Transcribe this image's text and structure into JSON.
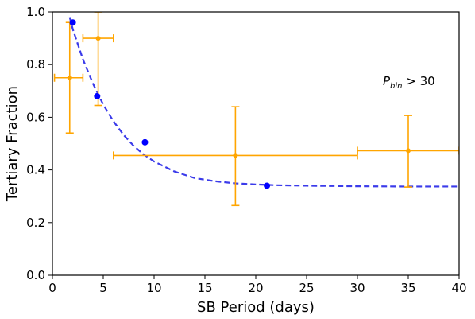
{
  "chart_data": {
    "type": "scatter",
    "xlabel": "SB Period (days)",
    "ylabel": "Tertiary Fraction",
    "xlim": [
      0,
      40
    ],
    "ylim": [
      0.0,
      1.0
    ],
    "x_ticks": [
      0,
      5,
      10,
      15,
      20,
      25,
      30,
      35,
      40
    ],
    "x_tick_labels": [
      "0",
      "5",
      "10",
      "15",
      "20",
      "25",
      "30",
      "35",
      "40"
    ],
    "y_ticks": [
      0.0,
      0.2,
      0.4,
      0.6,
      0.8,
      1.0
    ],
    "y_tick_labels": [
      "0.0",
      "0.2",
      "0.4",
      "0.6",
      "0.8",
      "1.0"
    ],
    "grid": false,
    "annotation": {
      "symbol": "P",
      "subscript": "bin",
      "relation": " > 30"
    },
    "series": [
      {
        "style": "orange points with x and y error bars",
        "color": "#ffa500",
        "points": [
          {
            "x": 1.7,
            "y": 0.75,
            "xerr": [
              0.2,
              3.0
            ],
            "yerr": [
              0.54,
              0.96
            ]
          },
          {
            "x": 4.5,
            "y": 0.9,
            "xerr": [
              3.0,
              6.0
            ],
            "yerr": [
              0.645,
              1.0
            ]
          },
          {
            "x": 18.0,
            "y": 0.455,
            "xerr": [
              6.0,
              30.0
            ],
            "yerr": [
              0.265,
              0.64
            ]
          },
          {
            "x": 35.0,
            "y": 0.473,
            "xerr": [
              30.0,
              40.0
            ],
            "yerr": [
              0.335,
              0.607
            ]
          }
        ]
      },
      {
        "style": "blue filled points",
        "color": "#0000ff",
        "points": [
          {
            "x": 2.0,
            "y": 0.96
          },
          {
            "x": 4.4,
            "y": 0.68
          },
          {
            "x": 9.1,
            "y": 0.505
          },
          {
            "x": 21.1,
            "y": 0.34
          }
        ]
      },
      {
        "style": "dashed blue curve",
        "color": "#3b3bea",
        "x": [
          1.7,
          2,
          3,
          4,
          5,
          6,
          7,
          8,
          9,
          10,
          12,
          14,
          16,
          18,
          20,
          22,
          25,
          30,
          35,
          40
        ],
        "y": [
          0.98,
          0.935,
          0.82,
          0.727,
          0.648,
          0.585,
          0.533,
          0.491,
          0.458,
          0.432,
          0.394,
          0.369,
          0.357,
          0.349,
          0.345,
          0.342,
          0.34,
          0.338,
          0.337,
          0.337
        ]
      }
    ]
  }
}
